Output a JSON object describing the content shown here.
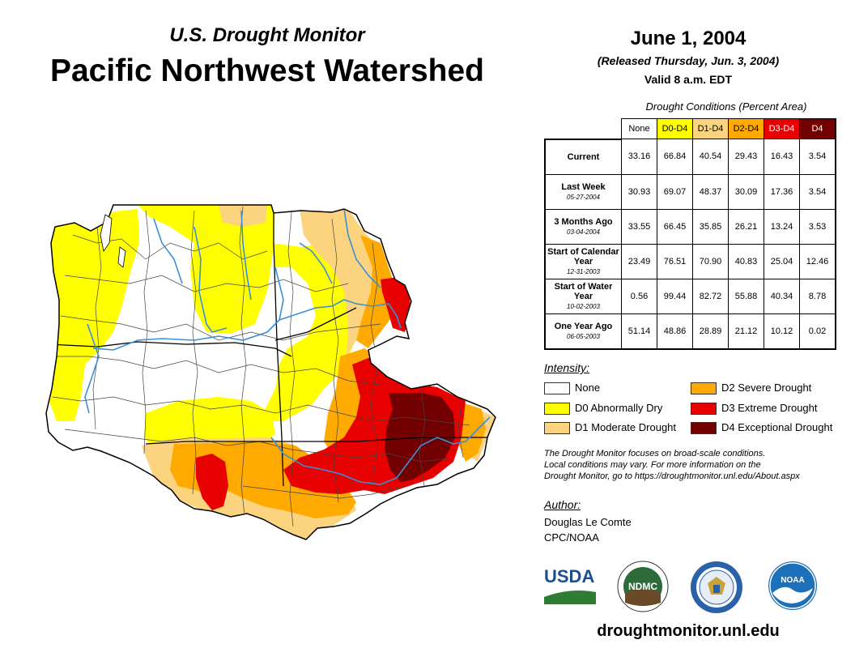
{
  "header": {
    "subtitle": "U.S. Drought Monitor",
    "title": "Pacific Northwest Watershed",
    "date": "June 1, 2004",
    "released": "(Released Thursday, Jun. 3, 2004)",
    "valid": "Valid 8 a.m. EDT"
  },
  "table": {
    "caption": "Drought Conditions (Percent Area)",
    "columns": [
      {
        "label": "None",
        "color": "#ffffff",
        "text": "#000000"
      },
      {
        "label": "D0-D4",
        "color": "#ffff00",
        "text": "#000000"
      },
      {
        "label": "D1-D4",
        "color": "#fcd37f",
        "text": "#000000"
      },
      {
        "label": "D2-D4",
        "color": "#ffaa00",
        "text": "#000000"
      },
      {
        "label": "D3-D4",
        "color": "#e60000",
        "text": "#ffffff"
      },
      {
        "label": "D4",
        "color": "#730000",
        "text": "#ffffff"
      }
    ],
    "rows": [
      {
        "label": "Current",
        "date": "",
        "values": [
          "33.16",
          "66.84",
          "40.54",
          "29.43",
          "16.43",
          "3.54"
        ]
      },
      {
        "label": "Last Week",
        "date": "05-27-2004",
        "values": [
          "30.93",
          "69.07",
          "48.37",
          "30.09",
          "17.36",
          "3.54"
        ]
      },
      {
        "label": "3 Months Ago",
        "date": "03-04-2004",
        "values": [
          "33.55",
          "66.45",
          "35.85",
          "26.21",
          "13.24",
          "3.53"
        ]
      },
      {
        "label": "Start of Calendar Year",
        "date": "12-31-2003",
        "values": [
          "23.49",
          "76.51",
          "70.90",
          "40.83",
          "25.04",
          "12.46"
        ]
      },
      {
        "label": "Start of Water Year",
        "date": "10-02-2003",
        "values": [
          "0.56",
          "99.44",
          "82.72",
          "55.88",
          "40.34",
          "8.78"
        ]
      },
      {
        "label": "One Year Ago",
        "date": "06-05-2003",
        "values": [
          "51.14",
          "48.86",
          "28.89",
          "21.12",
          "10.12",
          "0.02"
        ]
      }
    ]
  },
  "legend": {
    "title": "Intensity:",
    "items": [
      {
        "label": "None",
        "color": "#ffffff"
      },
      {
        "label": "D0 Abnormally Dry",
        "color": "#ffff00"
      },
      {
        "label": "D1 Moderate Drought",
        "color": "#fcd37f"
      },
      {
        "label": "D2 Severe Drought",
        "color": "#ffaa00"
      },
      {
        "label": "D3 Extreme Drought",
        "color": "#e60000"
      },
      {
        "label": "D4 Exceptional Drought",
        "color": "#730000"
      }
    ]
  },
  "note": {
    "line1": "The Drought Monitor focuses on broad-scale conditions.",
    "line2": "Local conditions may vary. For more information on the",
    "line3": "Drought Monitor, go to https://droughtmonitor.unl.edu/About.aspx"
  },
  "author": {
    "label": "Author:",
    "name": "Douglas Le Comte",
    "org": "CPC/NOAA"
  },
  "logos": {
    "usda": "USDA",
    "ndmc": "NDMC",
    "noaa": "NOAA"
  },
  "website": "droughtmonitor.unl.edu",
  "map_colors": {
    "none": "#ffffff",
    "d0": "#ffff00",
    "d1": "#fcd37f",
    "d2": "#ffaa00",
    "d3": "#e60000",
    "d4": "#730000",
    "river": "#3a8fd8"
  }
}
